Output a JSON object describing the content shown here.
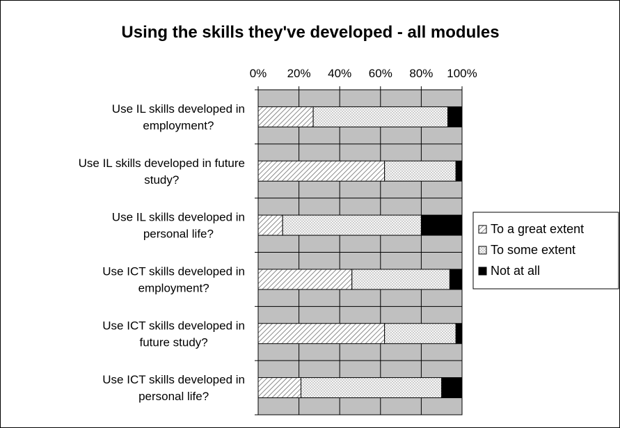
{
  "chart_data": {
    "type": "bar",
    "orientation": "horizontal",
    "stacked": "100%",
    "title": "Using the skills they've developed - all modules",
    "xlim": [
      0,
      100
    ],
    "x_ticks": [
      "0%",
      "20%",
      "40%",
      "60%",
      "80%",
      "100%"
    ],
    "x_axis_position": "top",
    "grid": true,
    "legend_position": "right",
    "categories": [
      [
        "Use IL skills developed in",
        "employment?"
      ],
      [
        "Use IL skills developed in future",
        "study?"
      ],
      [
        "Use IL skills developed in",
        "personal life?"
      ],
      [
        "Use ICT skills developed in",
        "employment?"
      ],
      [
        "Use ICT skills developed in",
        "future study?"
      ],
      [
        "Use ICT skills developed in",
        "personal life?"
      ]
    ],
    "series": [
      {
        "name": "To a great extent",
        "values": [
          27,
          62,
          12,
          46,
          62,
          21
        ]
      },
      {
        "name": "To some extent",
        "values": [
          66,
          35,
          68,
          48,
          35,
          69
        ]
      },
      {
        "name": "Not at all",
        "values": [
          7,
          3,
          20,
          6,
          3,
          10
        ]
      }
    ]
  }
}
